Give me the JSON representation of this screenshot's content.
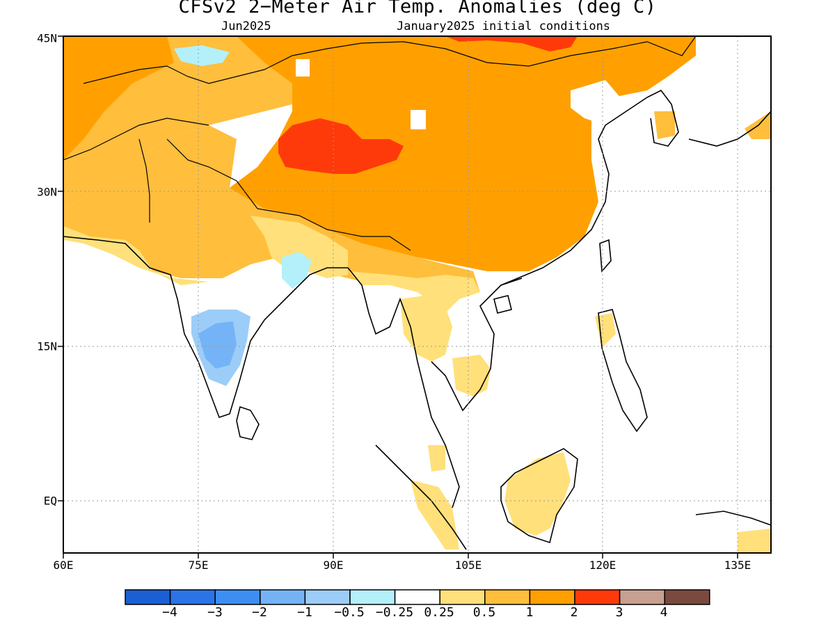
{
  "title": "CFSv2 2-Meter Air Temp. Anomalies (deg C)",
  "valid_month": "Jun2025",
  "initial_conditions": "January2025 initial conditions",
  "lat_labels": [
    "45N",
    "30N",
    "15N",
    "EQ"
  ],
  "lon_labels": [
    "60E",
    "75E",
    "90E",
    "105E",
    "120E",
    "135E"
  ],
  "colorbar": {
    "colors": [
      "#1a5fd4",
      "#2a74e8",
      "#3d8ef2",
      "#74b4f6",
      "#9ccdf8",
      "#b4f0fa",
      "#ffffff",
      "#ffe07a",
      "#ffbe3c",
      "#ffa000",
      "#ff3a0a",
      "#c8a090",
      "#7a4a3e"
    ],
    "labels": [
      "-4",
      "-3",
      "-2",
      "-1",
      "-0.5",
      "-0.25",
      "0.25",
      "0.5",
      "1",
      "2",
      "3",
      "4"
    ]
  }
}
